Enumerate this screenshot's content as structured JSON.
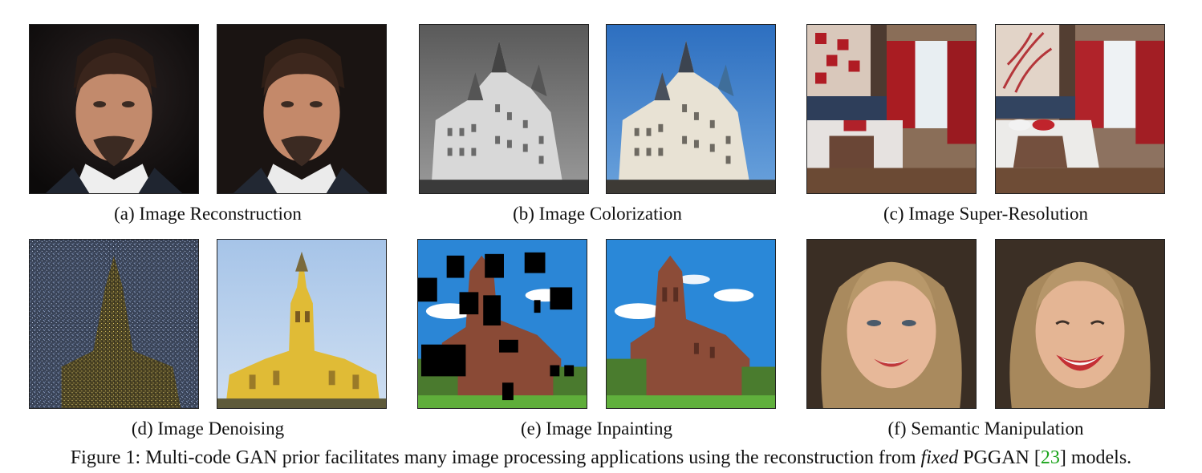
{
  "subfigures": [
    {
      "id": "a",
      "caption": "(a) Image Reconstruction",
      "left": "portrait-man-input-icon",
      "right": "portrait-man-reconstructed-icon"
    },
    {
      "id": "b",
      "caption": "(b) Image Colorization",
      "left": "castle-grayscale-icon",
      "right": "castle-color-icon"
    },
    {
      "id": "c",
      "caption": "(c) Image Super-Resolution",
      "left": "bedroom-lowres-icon",
      "right": "bedroom-highres-icon"
    },
    {
      "id": "d",
      "caption": "(d) Image Denoising",
      "left": "church-noisy-icon",
      "right": "church-clean-icon"
    },
    {
      "id": "e",
      "caption": "(e) Image Inpainting",
      "left": "cathedral-masked-icon",
      "right": "cathedral-inpainted-icon"
    },
    {
      "id": "f",
      "caption": "(f) Semantic Manipulation",
      "left": "woman-face-original-icon",
      "right": "woman-face-smile-icon"
    }
  ],
  "figure_caption": {
    "prefix": "Figure 1: Multi-code GAN prior facilitates many image processing applications using the reconstruction from ",
    "emphasis": "fixed",
    "middle": " PGGAN [",
    "ref": "23",
    "suffix": "] models."
  }
}
